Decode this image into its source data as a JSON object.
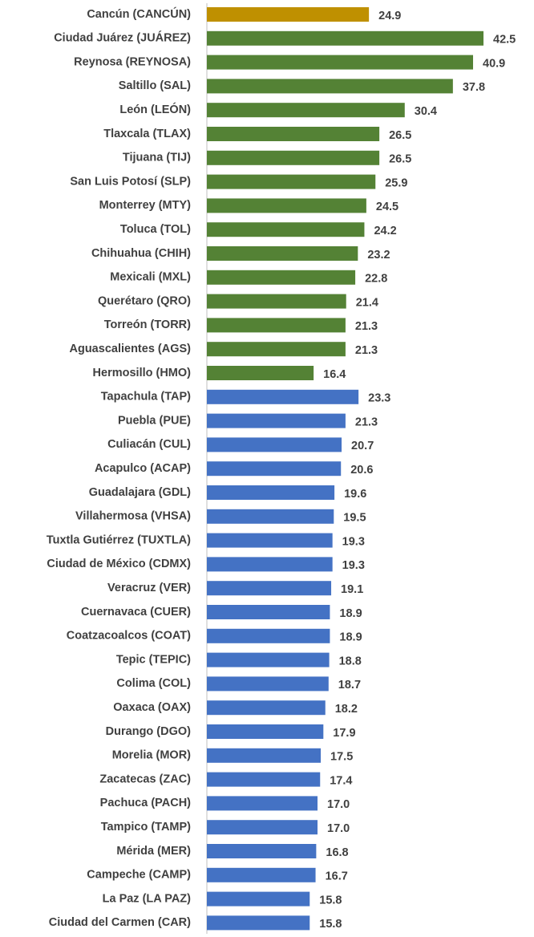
{
  "chart_data": {
    "type": "hbar",
    "categories": [
      "Cancún (CANCÚN)",
      "Ciudad Juárez (JUÁREZ)",
      "Reynosa (REYNOSA)",
      "Saltillo (SAL)",
      "León (LEÓN)",
      "Tlaxcala (TLAX)",
      "Tijuana (TIJ)",
      "San Luis Potosí (SLP)",
      "Monterrey (MTY)",
      "Toluca (TOL)",
      "Chihuahua (CHIH)",
      "Mexicali (MXL)",
      "Querétaro (QRO)",
      "Torreón (TORR)",
      "Aguascalientes (AGS)",
      "Hermosillo (HMO)",
      "Tapachula (TAP)",
      "Puebla (PUE)",
      "Culiacán (CUL)",
      "Acapulco (ACAP)",
      "Guadalajara (GDL)",
      "Villahermosa (VHSA)",
      "Tuxtla Gutiérrez (TUXTLA)",
      "Ciudad de México (CDMX)",
      "Veracruz (VER)",
      "Cuernavaca (CUER)",
      "Coatzacoalcos (COAT)",
      "Tepic (TEPIC)",
      "Colima (COL)",
      "Oaxaca (OAX)",
      "Durango (DGO)",
      "Morelia (MOR)",
      "Zacatecas (ZAC)",
      "Pachuca (PACH)",
      "Tampico (TAMP)",
      "Mérida (MER)",
      "Campeche (CAMP)",
      "La Paz (LA PAZ)",
      "Ciudad del Carmen (CAR)"
    ],
    "values": [
      24.9,
      42.5,
      40.9,
      37.8,
      30.4,
      26.5,
      26.5,
      25.9,
      24.5,
      24.2,
      23.2,
      22.8,
      21.4,
      21.3,
      21.3,
      16.4,
      23.3,
      21.3,
      20.7,
      20.6,
      19.6,
      19.5,
      19.3,
      19.3,
      19.1,
      18.9,
      18.9,
      18.8,
      18.7,
      18.2,
      17.9,
      17.5,
      17.4,
      17.0,
      17.0,
      16.8,
      16.7,
      15.8,
      15.8
    ],
    "value_labels": [
      "24.9",
      "42.5",
      "40.9",
      "37.8",
      "30.4",
      "26.5",
      "26.5",
      "25.9",
      "24.5",
      "24.2",
      "23.2",
      "22.8",
      "21.4",
      "21.3",
      "21.3",
      "16.4",
      "23.3",
      "21.3",
      "20.7",
      "20.6",
      "19.6",
      "19.5",
      "19.3",
      "19.3",
      "19.1",
      "18.9",
      "18.9",
      "18.8",
      "18.7",
      "18.2",
      "17.9",
      "17.5",
      "17.4",
      "17.0",
      "17.0",
      "16.8",
      "16.7",
      "15.8",
      "15.8"
    ],
    "colors": [
      "#bf9000",
      "#548235",
      "#548235",
      "#548235",
      "#548235",
      "#548235",
      "#548235",
      "#548235",
      "#548235",
      "#548235",
      "#548235",
      "#548235",
      "#548235",
      "#548235",
      "#548235",
      "#548235",
      "#4472c4",
      "#4472c4",
      "#4472c4",
      "#4472c4",
      "#4472c4",
      "#4472c4",
      "#4472c4",
      "#4472c4",
      "#4472c4",
      "#4472c4",
      "#4472c4",
      "#4472c4",
      "#4472c4",
      "#4472c4",
      "#4472c4",
      "#4472c4",
      "#4472c4",
      "#4472c4",
      "#4472c4",
      "#4472c4",
      "#4472c4",
      "#4472c4",
      "#4472c4"
    ]
  }
}
